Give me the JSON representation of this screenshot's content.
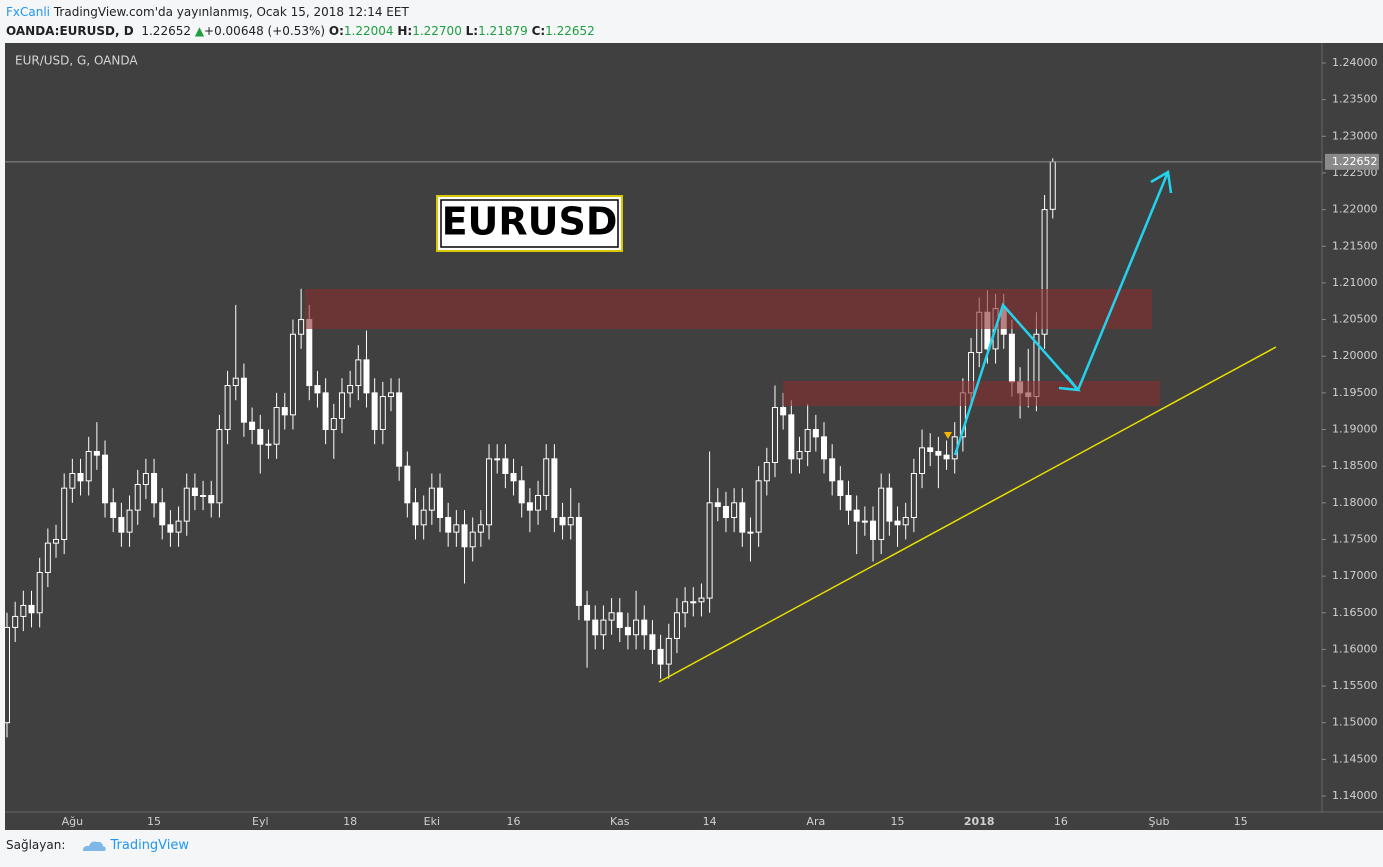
{
  "header": {
    "author": "FxCanli",
    "published": "TradingView.com'da yayınlanmış, Ocak 15, 2018 12:14 EET",
    "symbol": "OANDA:EURUSD, D",
    "price": "1.22652",
    "arrow": "▲",
    "change": "+0.00648 (+0.53%)",
    "ohlc": [
      {
        "label": "O:",
        "value": "1.22004"
      },
      {
        "label": "H:",
        "value": "1.22700"
      },
      {
        "label": "L:",
        "value": "1.21879"
      },
      {
        "label": "C:",
        "value": "1.22652"
      }
    ]
  },
  "footer": {
    "label": "Sağlayan:",
    "brand": "TradingView"
  },
  "chart_data": {
    "type": "candlestick",
    "title": "EUR/USD, G, OANDA",
    "annotation": "EURUSD",
    "up_color": "#404040",
    "down_color": "#ffffff",
    "wick_color": "#ffffff",
    "last_price": {
      "value": 1.22652,
      "label": "1.22652"
    },
    "ylim": [
      1.13782,
      1.24273
    ],
    "yticks": [
      {
        "value": 1.14,
        "label": "1.14000"
      },
      {
        "value": 1.145,
        "label": "1.14500"
      },
      {
        "value": 1.15,
        "label": "1.15000"
      },
      {
        "value": 1.155,
        "label": "1.15500"
      },
      {
        "value": 1.16,
        "label": "1.16000"
      },
      {
        "value": 1.165,
        "label": "1.16500"
      },
      {
        "value": 1.17,
        "label": "1.17000"
      },
      {
        "value": 1.175,
        "label": "1.17500"
      },
      {
        "value": 1.18,
        "label": "1.18000"
      },
      {
        "value": 1.185,
        "label": "1.18500"
      },
      {
        "value": 1.19,
        "label": "1.19000"
      },
      {
        "value": 1.195,
        "label": "1.19500"
      },
      {
        "value": 1.2,
        "label": "1.20000"
      },
      {
        "value": 1.205,
        "label": "1.20500"
      },
      {
        "value": 1.21,
        "label": "1.21000"
      },
      {
        "value": 1.215,
        "label": "1.21500"
      },
      {
        "value": 1.22,
        "label": "1.22000"
      },
      {
        "value": 1.225,
        "label": "1.22500"
      },
      {
        "value": 1.23,
        "label": "1.23000"
      },
      {
        "value": 1.235,
        "label": "1.23500"
      },
      {
        "value": 1.24,
        "label": "1.24000"
      }
    ],
    "categories": [
      null,
      null,
      null,
      null,
      null,
      null,
      null,
      null,
      "Ağu",
      null,
      null,
      null,
      null,
      null,
      null,
      null,
      null,
      null,
      "15",
      null,
      null,
      null,
      null,
      null,
      null,
      null,
      null,
      null,
      null,
      null,
      null,
      "Eyl",
      null,
      null,
      null,
      null,
      null,
      null,
      null,
      null,
      null,
      null,
      "18",
      null,
      null,
      null,
      null,
      null,
      null,
      null,
      null,
      null,
      "Eki",
      null,
      null,
      null,
      null,
      null,
      null,
      null,
      null,
      null,
      "16",
      null,
      null,
      null,
      null,
      null,
      null,
      null,
      null,
      null,
      null,
      null,
      null,
      "Kas",
      null,
      null,
      null,
      null,
      null,
      null,
      null,
      null,
      null,
      null,
      "14",
      null,
      null,
      null,
      null,
      null,
      null,
      null,
      null,
      null,
      null,
      null,
      null,
      "Ara",
      null,
      null,
      null,
      null,
      null,
      null,
      null,
      null,
      null,
      "15",
      null,
      null,
      null,
      null,
      null,
      null,
      null,
      null,
      null,
      "2018",
      null,
      null,
      null,
      null,
      null,
      null,
      null,
      null,
      null,
      "16",
      null,
      null,
      null,
      null,
      null,
      null,
      null,
      null,
      null,
      null,
      null,
      "Şub",
      null,
      null,
      null,
      null,
      null,
      null,
      null,
      null,
      null,
      "15",
      null,
      null,
      null,
      null,
      null,
      null,
      null,
      null,
      null
    ],
    "ohlc": [
      [
        1.15,
        1.165,
        1.148,
        1.163
      ],
      [
        1.163,
        1.1665,
        1.161,
        1.1645
      ],
      [
        1.1645,
        1.168,
        1.1625,
        1.166
      ],
      [
        1.166,
        1.168,
        1.163,
        1.165
      ],
      [
        1.165,
        1.1725,
        1.163,
        1.1705
      ],
      [
        1.1705,
        1.1765,
        1.1685,
        1.1745
      ],
      [
        1.1745,
        1.177,
        1.1725,
        1.175
      ],
      [
        1.175,
        1.184,
        1.173,
        1.182
      ],
      [
        1.182,
        1.186,
        1.18,
        1.184
      ],
      [
        1.184,
        1.186,
        1.181,
        1.183
      ],
      [
        1.183,
        1.189,
        1.181,
        1.187
      ],
      [
        1.187,
        1.191,
        1.1845,
        1.1865
      ],
      [
        1.1865,
        1.1885,
        1.178,
        1.18
      ],
      [
        1.18,
        1.182,
        1.176,
        1.178
      ],
      [
        1.178,
        1.18,
        1.174,
        1.176
      ],
      [
        1.176,
        1.181,
        1.174,
        1.179
      ],
      [
        1.179,
        1.1845,
        1.177,
        1.1825
      ],
      [
        1.1825,
        1.186,
        1.1805,
        1.184
      ],
      [
        1.184,
        1.186,
        1.178,
        1.18
      ],
      [
        1.18,
        1.182,
        1.175,
        1.177
      ],
      [
        1.177,
        1.179,
        1.174,
        1.176
      ],
      [
        1.176,
        1.1795,
        1.174,
        1.1775
      ],
      [
        1.1775,
        1.184,
        1.1755,
        1.182
      ],
      [
        1.182,
        1.184,
        1.179,
        1.181
      ],
      [
        1.181,
        1.183,
        1.179,
        1.181
      ],
      [
        1.181,
        1.183,
        1.178,
        1.18
      ],
      [
        1.18,
        1.192,
        1.178,
        1.19
      ],
      [
        1.19,
        1.198,
        1.188,
        1.196
      ],
      [
        1.196,
        1.207,
        1.194,
        1.197
      ],
      [
        1.197,
        1.199,
        1.189,
        1.191
      ],
      [
        1.191,
        1.193,
        1.188,
        1.19
      ],
      [
        1.19,
        1.192,
        1.184,
        1.188
      ],
      [
        1.188,
        1.19,
        1.186,
        1.188
      ],
      [
        1.188,
        1.195,
        1.186,
        1.193
      ],
      [
        1.193,
        1.195,
        1.19,
        1.192
      ],
      [
        1.192,
        1.205,
        1.19,
        1.203
      ],
      [
        1.203,
        1.2092,
        1.201,
        1.205
      ],
      [
        1.205,
        1.207,
        1.194,
        1.196
      ],
      [
        1.196,
        1.198,
        1.193,
        1.195
      ],
      [
        1.195,
        1.197,
        1.188,
        1.19
      ],
      [
        1.19,
        1.1935,
        1.186,
        1.1915
      ],
      [
        1.1915,
        1.197,
        1.1895,
        1.195
      ],
      [
        1.195,
        1.198,
        1.193,
        1.196
      ],
      [
        1.196,
        1.2015,
        1.194,
        1.1995
      ],
      [
        1.1995,
        1.2035,
        1.193,
        1.195
      ],
      [
        1.195,
        1.197,
        1.188,
        1.19
      ],
      [
        1.19,
        1.1965,
        1.188,
        1.1945
      ],
      [
        1.1945,
        1.197,
        1.1925,
        1.195
      ],
      [
        1.195,
        1.197,
        1.183,
        1.185
      ],
      [
        1.185,
        1.187,
        1.178,
        1.18
      ],
      [
        1.18,
        1.182,
        1.175,
        1.177
      ],
      [
        1.177,
        1.181,
        1.175,
        1.179
      ],
      [
        1.179,
        1.184,
        1.177,
        1.182
      ],
      [
        1.182,
        1.184,
        1.176,
        1.178
      ],
      [
        1.178,
        1.18,
        1.174,
        1.176
      ],
      [
        1.176,
        1.179,
        1.174,
        1.177
      ],
      [
        1.177,
        1.179,
        1.169,
        1.174
      ],
      [
        1.174,
        1.178,
        1.172,
        1.176
      ],
      [
        1.176,
        1.179,
        1.174,
        1.177
      ],
      [
        1.177,
        1.188,
        1.175,
        1.186
      ],
      [
        1.186,
        1.188,
        1.184,
        1.186
      ],
      [
        1.186,
        1.188,
        1.182,
        1.184
      ],
      [
        1.184,
        1.186,
        1.181,
        1.183
      ],
      [
        1.183,
        1.185,
        1.178,
        1.18
      ],
      [
        1.18,
        1.182,
        1.176,
        1.179
      ],
      [
        1.179,
        1.183,
        1.177,
        1.181
      ],
      [
        1.181,
        1.188,
        1.179,
        1.186
      ],
      [
        1.186,
        1.188,
        1.176,
        1.178
      ],
      [
        1.178,
        1.18,
        1.175,
        1.177
      ],
      [
        1.177,
        1.182,
        1.175,
        1.178
      ],
      [
        1.178,
        1.18,
        1.164,
        1.166
      ],
      [
        1.166,
        1.168,
        1.1575,
        1.164
      ],
      [
        1.164,
        1.166,
        1.16,
        1.162
      ],
      [
        1.162,
        1.166,
        1.16,
        1.164
      ],
      [
        1.164,
        1.167,
        1.162,
        1.165
      ],
      [
        1.165,
        1.167,
        1.161,
        1.163
      ],
      [
        1.163,
        1.165,
        1.16,
        1.162
      ],
      [
        1.162,
        1.168,
        1.16,
        1.164
      ],
      [
        1.164,
        1.166,
        1.16,
        1.162
      ],
      [
        1.162,
        1.164,
        1.158,
        1.16
      ],
      [
        1.16,
        1.162,
        1.156,
        1.158
      ],
      [
        1.158,
        1.1635,
        1.156,
        1.1615
      ],
      [
        1.1615,
        1.167,
        1.1595,
        1.165
      ],
      [
        1.165,
        1.1685,
        1.163,
        1.1665
      ],
      [
        1.1665,
        1.1685,
        1.1645,
        1.1665
      ],
      [
        1.1665,
        1.169,
        1.1645,
        1.167
      ],
      [
        1.167,
        1.187,
        1.165,
        1.18
      ],
      [
        1.18,
        1.182,
        1.1775,
        1.1795
      ],
      [
        1.1795,
        1.1815,
        1.176,
        1.178
      ],
      [
        1.178,
        1.182,
        1.176,
        1.18
      ],
      [
        1.18,
        1.182,
        1.174,
        1.176
      ],
      [
        1.176,
        1.178,
        1.172,
        1.176
      ],
      [
        1.176,
        1.185,
        1.174,
        1.183
      ],
      [
        1.183,
        1.1875,
        1.181,
        1.1855
      ],
      [
        1.1855,
        1.196,
        1.1835,
        1.193
      ],
      [
        1.193,
        1.195,
        1.19,
        1.192
      ],
      [
        1.192,
        1.194,
        1.184,
        1.186
      ],
      [
        1.186,
        1.189,
        1.184,
        1.187
      ],
      [
        1.187,
        1.1935,
        1.185,
        1.19
      ],
      [
        1.19,
        1.192,
        1.187,
        1.189
      ],
      [
        1.189,
        1.191,
        1.184,
        1.186
      ],
      [
        1.186,
        1.188,
        1.181,
        1.183
      ],
      [
        1.183,
        1.185,
        1.179,
        1.181
      ],
      [
        1.181,
        1.183,
        1.177,
        1.179
      ],
      [
        1.179,
        1.181,
        1.173,
        1.1775
      ],
      [
        1.1775,
        1.1795,
        1.1755,
        1.1775
      ],
      [
        1.1775,
        1.1795,
        1.172,
        1.175
      ],
      [
        1.175,
        1.184,
        1.173,
        1.182
      ],
      [
        1.182,
        1.184,
        1.1755,
        1.1775
      ],
      [
        1.1775,
        1.1795,
        1.174,
        1.177
      ],
      [
        1.177,
        1.18,
        1.175,
        1.178
      ],
      [
        1.178,
        1.186,
        1.176,
        1.184
      ],
      [
        1.184,
        1.19,
        1.182,
        1.1875
      ],
      [
        1.1875,
        1.1895,
        1.185,
        1.187
      ],
      [
        1.187,
        1.189,
        1.182,
        1.1865
      ],
      [
        1.1865,
        1.1885,
        1.1845,
        1.186
      ],
      [
        1.186,
        1.191,
        1.184,
        1.189
      ],
      [
        1.189,
        1.197,
        1.187,
        1.195
      ],
      [
        1.195,
        1.2025,
        1.193,
        1.2005
      ],
      [
        1.2005,
        1.208,
        1.1985,
        1.206
      ],
      [
        1.206,
        1.209,
        1.199,
        1.201
      ],
      [
        1.201,
        1.2085,
        1.199,
        1.2065
      ],
      [
        1.2065,
        1.2085,
        1.201,
        1.203
      ],
      [
        1.203,
        1.205,
        1.1945,
        1.1965
      ],
      [
        1.1965,
        1.1985,
        1.1915,
        1.195
      ],
      [
        1.195,
        1.201,
        1.193,
        1.1945
      ],
      [
        1.1945,
        1.206,
        1.1925,
        1.203
      ],
      [
        1.203,
        1.222,
        1.201,
        1.22
      ],
      [
        1.22004,
        1.227,
        1.21879,
        1.22652
      ],
      null,
      null,
      null,
      null,
      null,
      null,
      null,
      null,
      null,
      null,
      null,
      null,
      null,
      null,
      null,
      null,
      null,
      null,
      null,
      null,
      null,
      null,
      null,
      null,
      null,
      null,
      null,
      null,
      null,
      null,
      null,
      null
    ]
  }
}
